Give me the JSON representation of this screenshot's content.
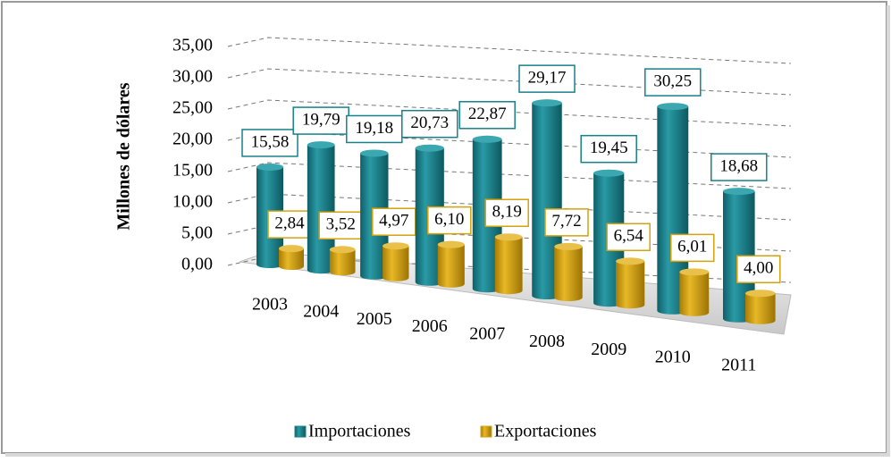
{
  "chart_data": {
    "type": "bar3d",
    "y_label": "Millones de dólares",
    "categories": [
      "2003",
      "2004",
      "2005",
      "2006",
      "2007",
      "2008",
      "2009",
      "2010",
      "2011"
    ],
    "series": [
      {
        "name": "Importaciones",
        "color": "#17808a",
        "values": [
          15.58,
          19.79,
          19.18,
          20.73,
          22.87,
          29.17,
          19.45,
          30.25,
          18.68
        ],
        "value_labels": [
          "15,58",
          "19,79",
          "19,18",
          "20,73",
          "22,87",
          "29,17",
          "19,45",
          "30,25",
          "18,68"
        ]
      },
      {
        "name": "Exportaciones",
        "color": "#d4a20f",
        "values": [
          2.84,
          3.52,
          4.97,
          6.1,
          8.19,
          7.72,
          6.54,
          6.01,
          4.0
        ],
        "value_labels": [
          "2,84",
          "3,52",
          "4,97",
          "6,10",
          "8,19",
          "7,72",
          "6,54",
          "6,01",
          "4,00"
        ]
      }
    ],
    "ylim": [
      0,
      35
    ],
    "yticks": [
      {
        "value": 0,
        "label": "0,00"
      },
      {
        "value": 5,
        "label": "5,00"
      },
      {
        "value": 10,
        "label": "10,00"
      },
      {
        "value": 15,
        "label": "15,00"
      },
      {
        "value": 20,
        "label": "20,00"
      },
      {
        "value": 25,
        "label": "25,00"
      },
      {
        "value": 30,
        "label": "30,00"
      },
      {
        "value": 35,
        "label": "35,00"
      }
    ],
    "grid": true,
    "legend": "bottom"
  }
}
